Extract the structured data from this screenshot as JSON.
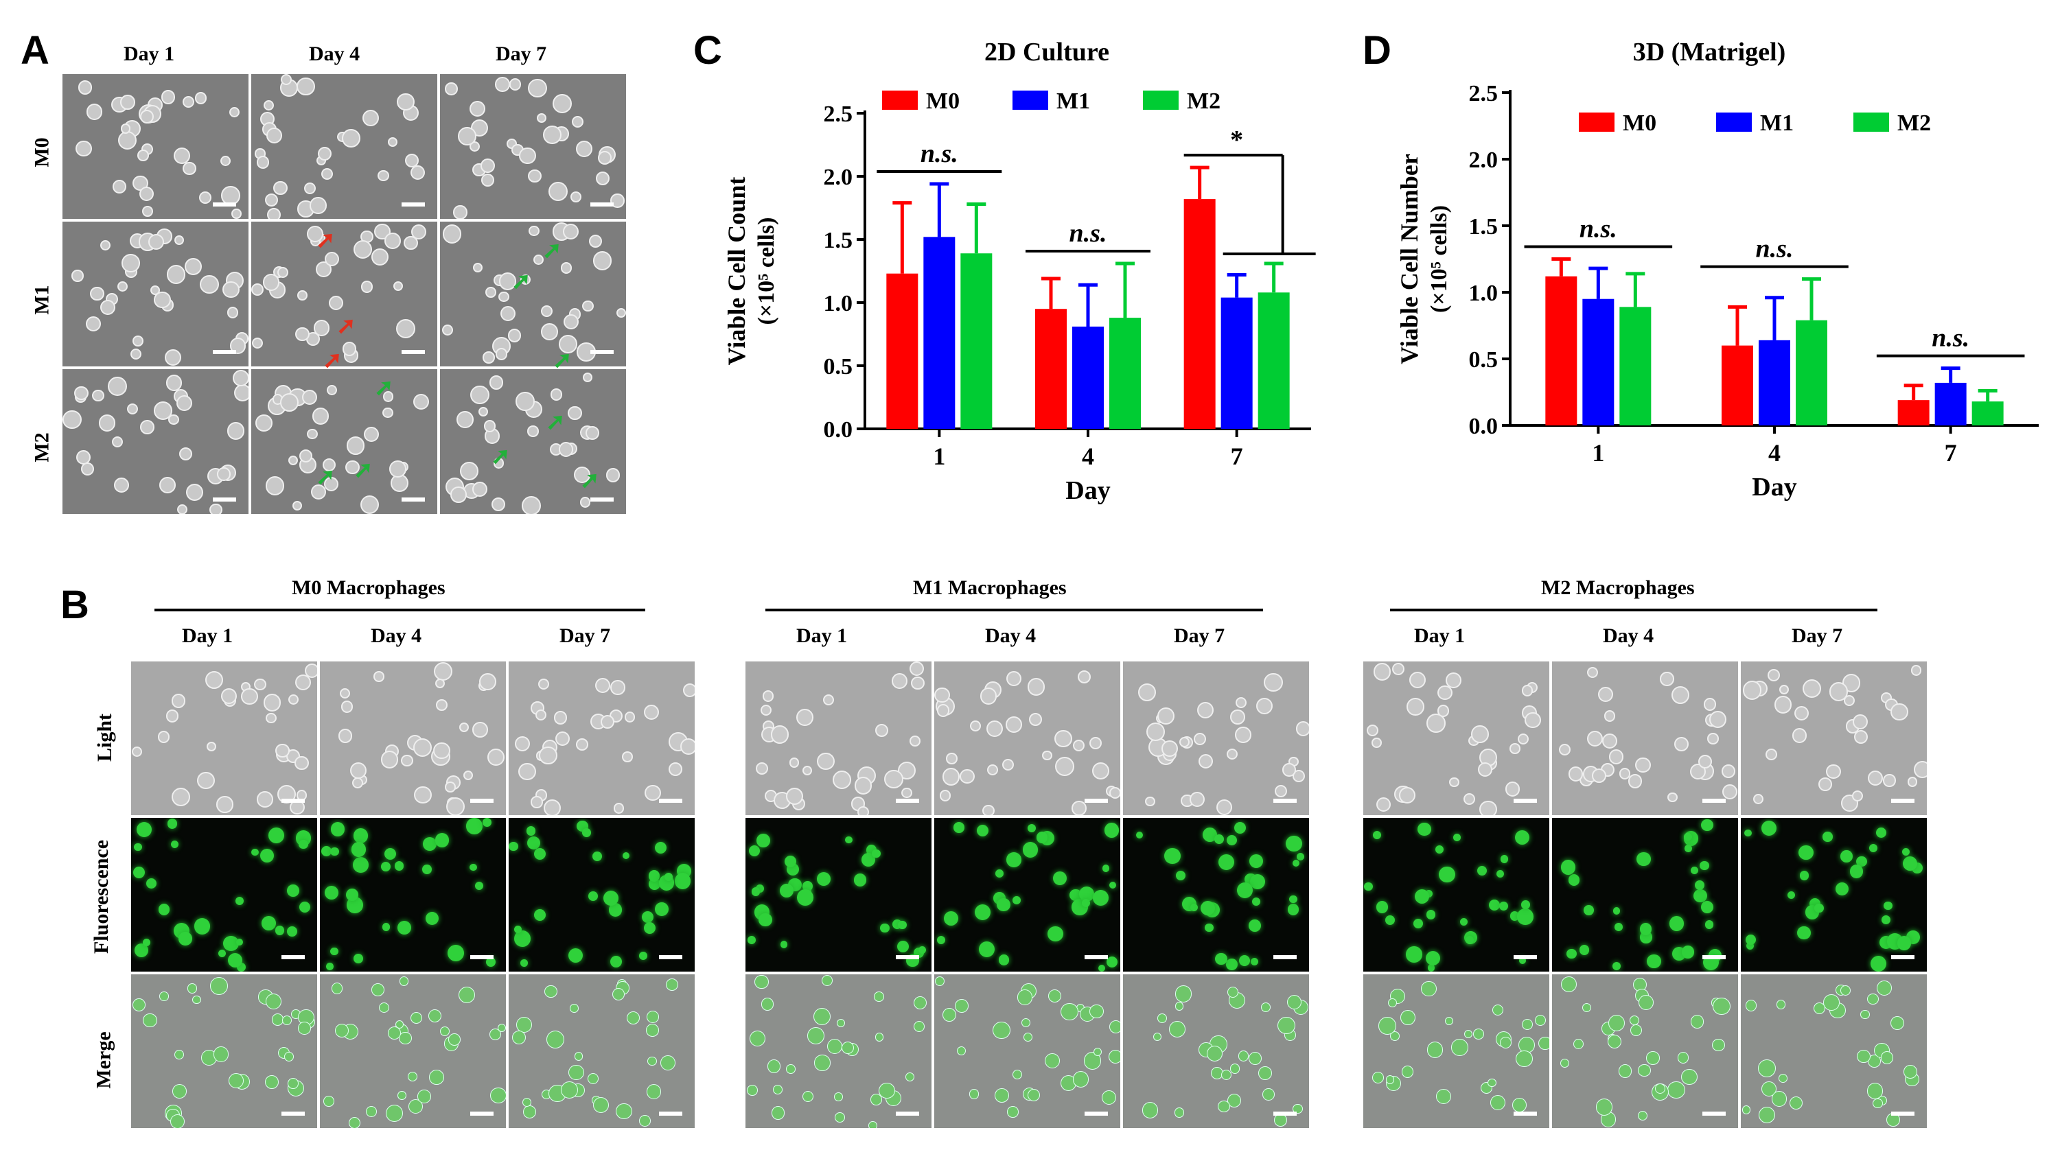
{
  "panels": {
    "a": {
      "letter": "A",
      "columns": [
        "Day 1",
        "Day 4",
        "Day 7"
      ],
      "rows": [
        "M0",
        "M1",
        "M2"
      ]
    },
    "b": {
      "letter": "B",
      "groups": [
        "M0 Macrophages",
        "M1 Macrophages",
        "M2 Macrophages"
      ],
      "columns": [
        "Day 1",
        "Day 4",
        "Day 7"
      ],
      "rows": [
        "Light",
        "Fluorescence",
        "Merge"
      ]
    },
    "c": {
      "letter": "C"
    },
    "d": {
      "letter": "D"
    }
  },
  "colors": {
    "M0": "#ff0000",
    "M1": "#0000ff",
    "M2": "#00cc33"
  },
  "chart_data": [
    {
      "type": "bar",
      "title": "2D Culture",
      "xlabel": "Day",
      "ylabel": "Viable Cell Count",
      "ylabel_unit": "(×10⁵ cells)",
      "categories": [
        "1",
        "4",
        "7"
      ],
      "ylim": [
        0,
        2.5
      ],
      "yticks": [
        "0.0",
        "0.5",
        "1.0",
        "1.5",
        "2.0",
        "2.5"
      ],
      "legend_position": "top",
      "series": [
        {
          "name": "M0",
          "values": [
            1.23,
            0.95,
            1.82
          ],
          "errors": [
            0.56,
            0.24,
            0.25
          ]
        },
        {
          "name": "M1",
          "values": [
            1.52,
            0.81,
            1.04
          ],
          "errors": [
            0.42,
            0.33,
            0.18
          ]
        },
        {
          "name": "M2",
          "values": [
            1.39,
            0.88,
            1.08
          ],
          "errors": [
            0.39,
            0.43,
            0.23
          ]
        }
      ],
      "annotations": [
        "n.s.",
        "n.s.",
        "*"
      ]
    },
    {
      "type": "bar",
      "title": "3D (Matrigel)",
      "xlabel": "Day",
      "ylabel": "Viable Cell Number",
      "ylabel_unit": "(×10⁵ cells)",
      "categories": [
        "1",
        "4",
        "7"
      ],
      "ylim": [
        0,
        2.5
      ],
      "yticks": [
        "0.0",
        "0.5",
        "1.0",
        "1.5",
        "2.0",
        "2.5"
      ],
      "legend_position": "top",
      "series": [
        {
          "name": "M0",
          "values": [
            1.12,
            0.6,
            0.19
          ],
          "errors": [
            0.13,
            0.29,
            0.11
          ]
        },
        {
          "name": "M1",
          "values": [
            0.95,
            0.64,
            0.32
          ],
          "errors": [
            0.23,
            0.32,
            0.11
          ]
        },
        {
          "name": "M2",
          "values": [
            0.89,
            0.79,
            0.18
          ],
          "errors": [
            0.25,
            0.31,
            0.08
          ]
        }
      ],
      "annotations": [
        "n.s.",
        "n.s.",
        "n.s."
      ]
    }
  ]
}
